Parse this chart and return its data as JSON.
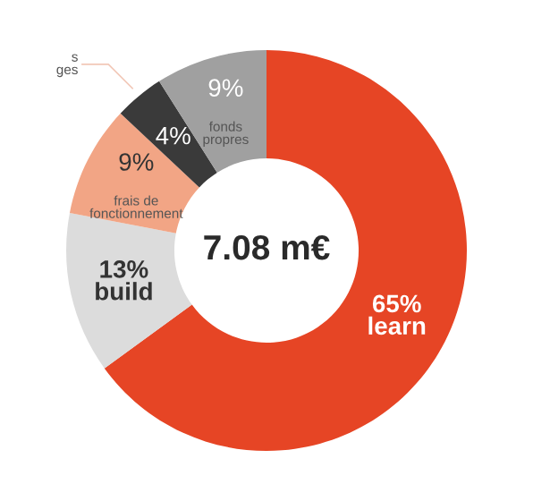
{
  "chart_data": {
    "type": "donut",
    "categories": [
      "learn",
      "build",
      "frais de\nfonctionnement",
      "s\nges",
      "fonds\npropres"
    ],
    "values": [
      65,
      13,
      9,
      4,
      9
    ],
    "colors": [
      "#e64525",
      "#dcdcdc",
      "#f2a585",
      "#3a3a3a",
      "#a0a0a0"
    ],
    "value_labels": [
      "65%",
      "13%",
      "9%",
      "4%",
      "9%"
    ],
    "legend": false,
    "annotations": [
      "7.08 m€"
    ]
  }
}
